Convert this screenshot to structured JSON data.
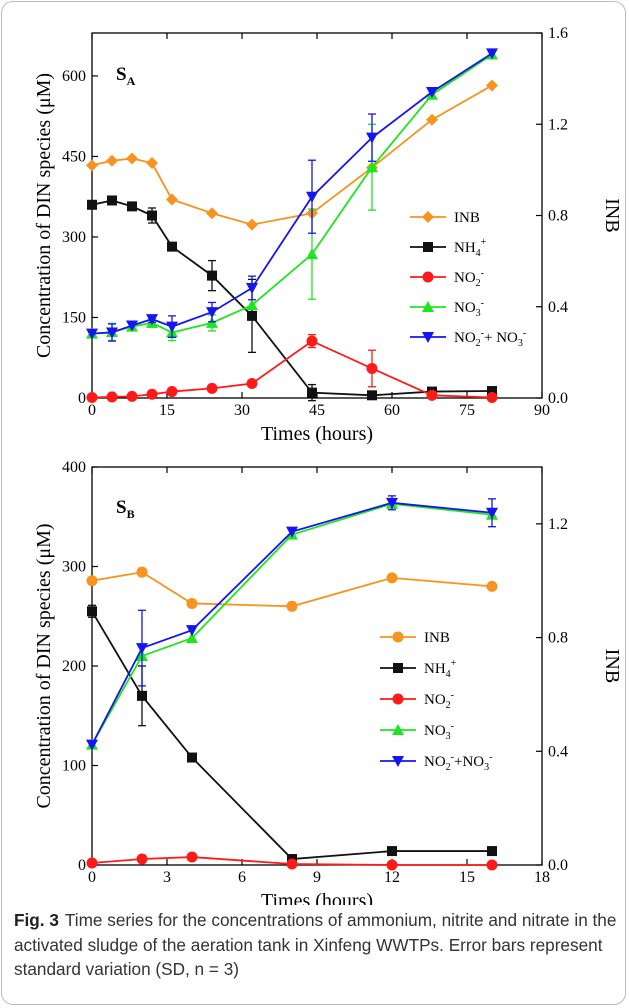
{
  "figure": {
    "caption_label": "Fig. 3",
    "caption_text": "Time series for the concentrations of ammonium, nitrite and nitrate in the activated sludge of the aeration tank in Xinfeng WWTPs. Error bars represent standard variation (SD, n = 3)"
  },
  "chart_data": [
    {
      "type": "line",
      "panel_label": "S",
      "panel_sub": "A",
      "xlabel": "Times (hours)",
      "ylabel": "Concentration of DIN species (μM)",
      "y2label": "INB",
      "xlim": [
        0,
        90
      ],
      "ylim": [
        0,
        680
      ],
      "y2lim": [
        0,
        1.6
      ],
      "xticks": [
        0,
        15,
        30,
        45,
        60,
        75,
        90
      ],
      "yticks": [
        0,
        150,
        300,
        450,
        600
      ],
      "y2ticks": [
        0.0,
        0.4,
        0.8,
        1.2,
        1.6
      ],
      "y2tick_labels": [
        "0.0",
        "0.4",
        "0.8",
        "1.2",
        "1.6"
      ],
      "legend_position": "middle-right",
      "series": [
        {
          "name": "INB",
          "sup": "",
          "sub": "",
          "color": "#f7931e",
          "marker": "diamond",
          "axis": "right",
          "x": [
            0,
            4,
            8,
            12,
            16,
            24,
            32,
            44,
            56,
            68,
            80
          ],
          "y": [
            1.02,
            1.04,
            1.05,
            1.03,
            0.87,
            0.81,
            0.76,
            0.81,
            1.01,
            1.22,
            1.37
          ],
          "err": []
        },
        {
          "name": "NH4",
          "sup": "+",
          "sub": "4",
          "color": "#111111",
          "marker": "square",
          "axis": "left",
          "x": [
            0,
            4,
            8,
            12,
            16,
            24,
            32,
            44,
            56,
            68,
            80
          ],
          "y": [
            360,
            368,
            357,
            340,
            282,
            228,
            153,
            10,
            5,
            12,
            13
          ],
          "err": [
            0,
            0,
            0,
            14,
            0,
            28,
            68,
            15,
            0,
            0,
            0
          ]
        },
        {
          "name": "NO2",
          "sup": "-",
          "sub": "2",
          "color": "#ff1a1a",
          "marker": "circle",
          "axis": "left",
          "x": [
            0,
            4,
            8,
            12,
            16,
            24,
            32,
            44,
            56,
            68,
            80
          ],
          "y": [
            1,
            2,
            3,
            7,
            12,
            18,
            27,
            106,
            55,
            5,
            1
          ],
          "err": [
            0,
            0,
            0,
            0,
            0,
            0,
            0,
            12,
            34,
            0,
            0
          ]
        },
        {
          "name": "NO3",
          "sup": "-",
          "sub": "3",
          "color": "#1ee61e",
          "marker": "triangle-up",
          "axis": "left",
          "x": [
            0,
            4,
            8,
            12,
            16,
            24,
            32,
            44,
            56,
            68,
            80
          ],
          "y": [
            120,
            123,
            133,
            140,
            122,
            140,
            173,
            268,
            430,
            565,
            640
          ],
          "err": [
            0,
            16,
            0,
            8,
            15,
            15,
            0,
            84,
            80,
            0,
            0
          ]
        },
        {
          "name": "NO2 + NO3",
          "sup": "-",
          "sub": "2",
          "color": "#1515ef",
          "marker": "triangle-down",
          "axis": "left",
          "x": [
            0,
            4,
            8,
            12,
            16,
            24,
            32,
            44,
            56,
            68,
            80
          ],
          "y": [
            120,
            122,
            135,
            147,
            133,
            160,
            205,
            375,
            485,
            570,
            642
          ],
          "err": [
            0,
            16,
            0,
            6,
            20,
            18,
            22,
            68,
            44,
            0,
            0
          ]
        }
      ]
    },
    {
      "type": "line",
      "panel_label": "S",
      "panel_sub": "B",
      "xlabel": "Times (hours)",
      "ylabel": "Concentration of DIN species (μM)",
      "y2label": "INB",
      "xlim": [
        0,
        18
      ],
      "ylim": [
        0,
        400
      ],
      "y2lim": [
        0,
        1.4
      ],
      "xticks": [
        0,
        3,
        6,
        9,
        12,
        15,
        18
      ],
      "yticks": [
        0,
        100,
        200,
        300,
        400
      ],
      "y2ticks": [
        0.0,
        0.4,
        0.8,
        1.2
      ],
      "y2tick_labels": [
        "0.0",
        "0.4",
        "0.8",
        "1.2"
      ],
      "legend_position": "middle-right",
      "series": [
        {
          "name": "INB",
          "sup": "",
          "sub": "",
          "color": "#f7931e",
          "marker": "circle",
          "axis": "right",
          "x": [
            0,
            2,
            4,
            8,
            12,
            16
          ],
          "y": [
            1.0,
            1.03,
            0.92,
            0.91,
            1.01,
            0.98
          ],
          "err": []
        },
        {
          "name": "NH4",
          "sup": "+",
          "sub": "4",
          "color": "#111111",
          "marker": "square",
          "axis": "left",
          "x": [
            0,
            2,
            4,
            8,
            12,
            16
          ],
          "y": [
            255,
            170,
            108,
            6,
            14,
            14
          ],
          "err": [
            6,
            30,
            0,
            0,
            0,
            0
          ]
        },
        {
          "name": "NO2",
          "sup": "-",
          "sub": "2",
          "color": "#ff1a1a",
          "marker": "circle",
          "axis": "left",
          "x": [
            0,
            2,
            4,
            8,
            12,
            16
          ],
          "y": [
            2,
            6,
            8,
            1,
            0,
            0
          ],
          "err": [
            0,
            0,
            0,
            0,
            0,
            0
          ]
        },
        {
          "name": "NO3",
          "sup": "-",
          "sub": "3",
          "color": "#1ee61e",
          "marker": "triangle-up",
          "axis": "left",
          "x": [
            0,
            2,
            4,
            8,
            12,
            16
          ],
          "y": [
            121,
            210,
            228,
            332,
            363,
            352
          ],
          "err": [
            0,
            0,
            0,
            0,
            0,
            0
          ]
        },
        {
          "name": "NO2 +NO3",
          "sup": "-",
          "sub": "2",
          "color": "#1515ef",
          "marker": "triangle-down",
          "axis": "left",
          "x": [
            0,
            2,
            4,
            8,
            12,
            16
          ],
          "y": [
            121,
            218,
            236,
            335,
            364,
            354
          ],
          "err": [
            0,
            38,
            0,
            0,
            7,
            14
          ]
        }
      ]
    }
  ]
}
